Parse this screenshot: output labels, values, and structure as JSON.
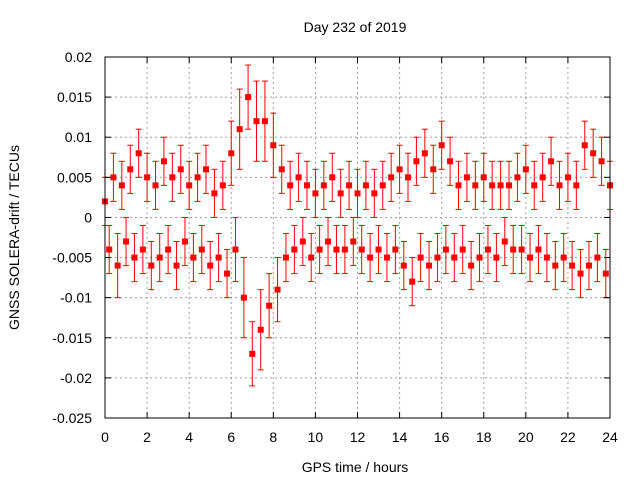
{
  "chart_data": {
    "type": "scatter",
    "title": "Day 232 of 2019",
    "xlabel": "GPS time / hours",
    "ylabel": "GNSS SOLERA-drift / TECUs",
    "xlim": [
      0,
      24
    ],
    "ylim": [
      -0.025,
      0.02
    ],
    "xticks": [
      0,
      2,
      4,
      6,
      8,
      10,
      12,
      14,
      16,
      18,
      20,
      22,
      24
    ],
    "xtick_labels": [
      "0",
      "2",
      "4",
      "6",
      "8",
      "10",
      "12",
      "14",
      "16",
      "18",
      "20",
      "22",
      "24"
    ],
    "yticks": [
      -0.025,
      -0.02,
      -0.015,
      -0.01,
      -0.005,
      0,
      0.005,
      0.01,
      0.015,
      0.02
    ],
    "ytick_labels": [
      "-0.025",
      "-0.02",
      "-0.015",
      "-0.01",
      "-0.005",
      "0",
      "0.005",
      "0.01",
      "0.015",
      "0.02"
    ],
    "grid": true,
    "series": [
      {
        "name": "SOLERA drift",
        "color": "#ff0000",
        "marker": "square",
        "error_bars": true,
        "x": [
          0.0,
          0.2,
          0.4,
          0.6,
          0.8,
          1.0,
          1.2,
          1.4,
          1.6,
          1.8,
          2.0,
          2.2,
          2.4,
          2.6,
          2.8,
          3.0,
          3.2,
          3.4,
          3.6,
          3.8,
          4.0,
          4.2,
          4.4,
          4.6,
          4.8,
          5.0,
          5.2,
          5.4,
          5.6,
          5.8,
          6.0,
          6.2,
          6.4,
          6.6,
          6.8,
          7.0,
          7.2,
          7.4,
          7.6,
          7.8,
          8.0,
          8.2,
          8.4,
          8.6,
          8.8,
          9.0,
          9.2,
          9.4,
          9.6,
          9.8,
          10.0,
          10.2,
          10.4,
          10.6,
          10.8,
          11.0,
          11.2,
          11.4,
          11.6,
          11.8,
          12.0,
          12.2,
          12.4,
          12.6,
          12.8,
          13.0,
          13.2,
          13.4,
          13.6,
          13.8,
          14.0,
          14.2,
          14.4,
          14.6,
          14.8,
          15.0,
          15.2,
          15.4,
          15.6,
          15.8,
          16.0,
          16.2,
          16.4,
          16.6,
          16.8,
          17.0,
          17.2,
          17.4,
          17.6,
          17.8,
          18.0,
          18.2,
          18.4,
          18.6,
          18.8,
          19.0,
          19.2,
          19.4,
          19.6,
          19.8,
          20.0,
          20.2,
          20.4,
          20.6,
          20.8,
          21.0,
          21.2,
          21.4,
          21.6,
          21.8,
          22.0,
          22.2,
          22.4,
          22.6,
          22.8,
          23.0,
          23.2,
          23.4,
          23.6,
          23.8,
          24.0
        ],
        "y": [
          0.002,
          -0.004,
          0.005,
          -0.006,
          0.004,
          -0.003,
          0.006,
          -0.005,
          0.008,
          -0.004,
          0.005,
          -0.006,
          0.004,
          -0.005,
          0.007,
          -0.004,
          0.005,
          -0.006,
          0.006,
          -0.003,
          0.004,
          -0.005,
          0.005,
          -0.004,
          0.006,
          -0.006,
          0.003,
          -0.005,
          0.004,
          -0.007,
          0.008,
          -0.004,
          0.011,
          -0.01,
          0.015,
          -0.017,
          0.012,
          -0.014,
          0.012,
          -0.011,
          0.009,
          -0.009,
          0.006,
          -0.005,
          0.004,
          -0.004,
          0.005,
          -0.003,
          0.004,
          -0.005,
          0.003,
          -0.004,
          0.004,
          -0.003,
          0.005,
          -0.004,
          0.003,
          -0.004,
          0.004,
          -0.003,
          0.003,
          -0.004,
          0.004,
          -0.005,
          0.003,
          -0.004,
          0.004,
          -0.005,
          0.005,
          -0.004,
          0.006,
          -0.006,
          0.005,
          -0.008,
          0.007,
          -0.005,
          0.008,
          -0.006,
          0.006,
          -0.005,
          0.009,
          -0.004,
          0.007,
          -0.005,
          0.004,
          -0.004,
          0.005,
          -0.006,
          0.004,
          -0.005,
          0.005,
          -0.004,
          0.004,
          -0.005,
          0.004,
          -0.003,
          0.004,
          -0.004,
          0.005,
          -0.004,
          0.006,
          -0.005,
          0.004,
          -0.004,
          0.005,
          -0.005,
          0.007,
          -0.006,
          0.004,
          -0.005,
          0.005,
          -0.006,
          0.004,
          -0.007,
          0.009,
          -0.006,
          0.008,
          -0.005,
          0.007,
          -0.007,
          0.004
        ],
        "yerr": [
          0.003,
          0.003,
          0.003,
          0.004,
          0.003,
          0.003,
          0.003,
          0.003,
          0.003,
          0.003,
          0.003,
          0.003,
          0.003,
          0.003,
          0.003,
          0.003,
          0.003,
          0.003,
          0.003,
          0.003,
          0.003,
          0.003,
          0.003,
          0.003,
          0.003,
          0.003,
          0.003,
          0.003,
          0.003,
          0.003,
          0.004,
          0.004,
          0.005,
          0.005,
          0.004,
          0.004,
          0.005,
          0.005,
          0.005,
          0.004,
          0.004,
          0.004,
          0.003,
          0.003,
          0.003,
          0.003,
          0.003,
          0.003,
          0.003,
          0.003,
          0.003,
          0.003,
          0.003,
          0.003,
          0.003,
          0.003,
          0.003,
          0.003,
          0.003,
          0.003,
          0.003,
          0.003,
          0.003,
          0.003,
          0.003,
          0.003,
          0.003,
          0.003,
          0.003,
          0.003,
          0.003,
          0.003,
          0.003,
          0.003,
          0.003,
          0.003,
          0.003,
          0.003,
          0.003,
          0.003,
          0.003,
          0.003,
          0.003,
          0.003,
          0.003,
          0.003,
          0.003,
          0.003,
          0.003,
          0.003,
          0.003,
          0.003,
          0.003,
          0.003,
          0.003,
          0.003,
          0.003,
          0.003,
          0.003,
          0.003,
          0.003,
          0.003,
          0.003,
          0.003,
          0.003,
          0.003,
          0.003,
          0.003,
          0.003,
          0.003,
          0.003,
          0.003,
          0.003,
          0.003,
          0.003,
          0.003,
          0.003,
          0.003,
          0.003,
          0.003,
          0.003
        ]
      }
    ]
  }
}
